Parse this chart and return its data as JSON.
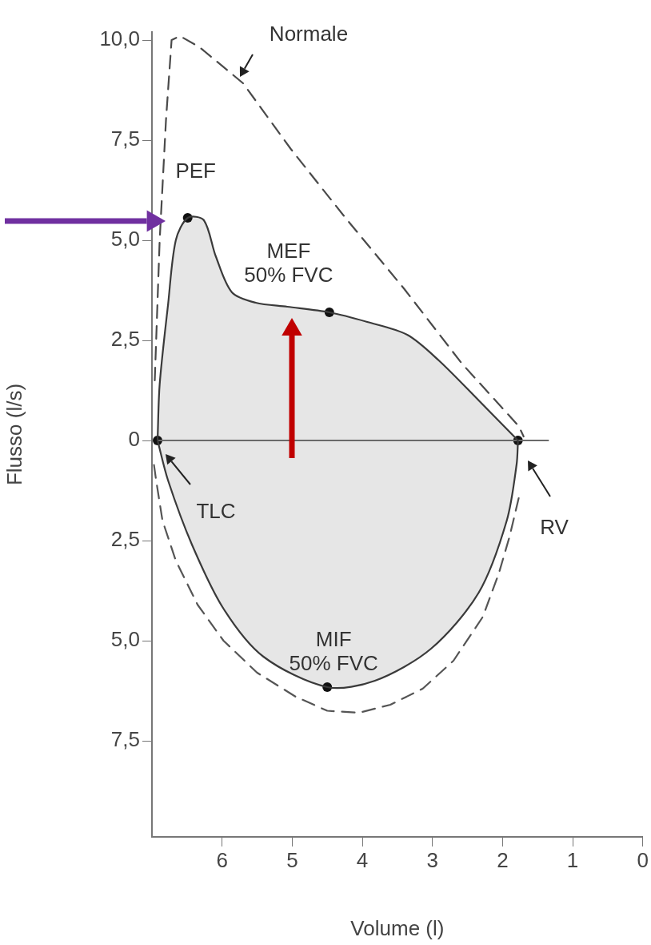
{
  "chart_data": {
    "type": "line",
    "xlabel": "Volume (l)",
    "ylabel": "Flusso (l/s)",
    "xlim": [
      7,
      0
    ],
    "xticks": [
      6,
      5,
      4,
      3,
      2,
      1,
      0
    ],
    "ylim": [
      -9.9,
      10.2
    ],
    "yticks": [
      {
        "value": 10,
        "label": "10,0"
      },
      {
        "value": 7.5,
        "label": "7,5"
      },
      {
        "value": 5,
        "label": "5,0"
      },
      {
        "value": 2.5,
        "label": "2,5"
      },
      0,
      {
        "value": -2.5,
        "label": "2,5"
      },
      {
        "value": -5,
        "label": "5,0"
      },
      {
        "value": -7.5,
        "label": "7,5"
      }
    ],
    "series": [
      {
        "type": "area",
        "color": "#3a3a3a",
        "marker": "none",
        "x": [
          6.92,
          6.89,
          6.77,
          6.66,
          6.49,
          6.26,
          6.09,
          5.86,
          5.52,
          5.07,
          4.47,
          3.93,
          3.36,
          2.91,
          2.34,
          1.78
        ],
        "values": [
          0,
          1.4,
          3.4,
          5.0,
          5.56,
          5.5,
          4.6,
          3.7,
          3.44,
          3.34,
          3.2,
          2.96,
          2.64,
          2.0,
          1.0,
          0
        ]
      },
      {
        "type": "area",
        "color": "#3a3a3a",
        "marker": "none",
        "x": [
          6.92,
          6.77,
          6.43,
          5.98,
          5.41,
          4.5,
          3.82,
          3.02,
          2.34,
          1.94,
          1.8,
          1.78
        ],
        "values": [
          0,
          -1.0,
          -2.6,
          -4.2,
          -5.4,
          -6.16,
          -6.0,
          -5.2,
          -3.8,
          -2.0,
          -0.6,
          0
        ]
      },
      {
        "color": "#4a4a4a",
        "marker": "none",
        "line_style": "dashed",
        "x": [
          6.96,
          6.89,
          6.8,
          6.72,
          6.6,
          6.32,
          5.7,
          5.02,
          4.25,
          3.4,
          2.58,
          1.77,
          1.7
        ],
        "values": [
          1.5,
          5.0,
          8.0,
          10.0,
          10.1,
          9.82,
          8.92,
          7.28,
          5.58,
          3.78,
          1.92,
          0.36,
          0.1
        ]
      },
      {
        "color": "#555555",
        "marker": "none",
        "line_style": "dashed",
        "x": [
          1.77,
          1.9,
          2.05,
          2.28,
          2.7,
          3.14,
          3.6,
          4.05,
          4.5,
          4.95,
          5.5,
          5.98,
          6.35,
          6.66,
          6.85,
          6.94,
          6.98
        ],
        "values": [
          -1.44,
          -2.4,
          -3.3,
          -4.4,
          -5.5,
          -6.2,
          -6.6,
          -6.8,
          -6.75,
          -6.4,
          -5.8,
          -5.0,
          -4.1,
          -3.0,
          -2.0,
          -1.0,
          -0.5
        ]
      },
      {
        "color": "#6a6a6a",
        "marker": "none",
        "x": [
          6.92,
          1.34
        ],
        "values": [
          0,
          0
        ]
      },
      {
        "type": "scatter",
        "color": "#111111",
        "marker": "circle",
        "x": [
          6.92,
          6.49,
          4.47,
          4.5,
          1.78
        ],
        "values": [
          0,
          5.56,
          3.2,
          -6.16,
          0
        ]
      }
    ],
    "annotations": [
      {
        "text": "Normale",
        "x": 5.7,
        "y": 8.92
      },
      {
        "text": "PEF",
        "x": 6.49,
        "y": 5.56
      },
      {
        "text": "MEF 50% FVC",
        "x": 4.47,
        "y": 3.2
      },
      "TLC",
      "RV",
      {
        "text": "MIF 50% FVC",
        "x": 4.5,
        "y": -6.16
      }
    ]
  }
}
